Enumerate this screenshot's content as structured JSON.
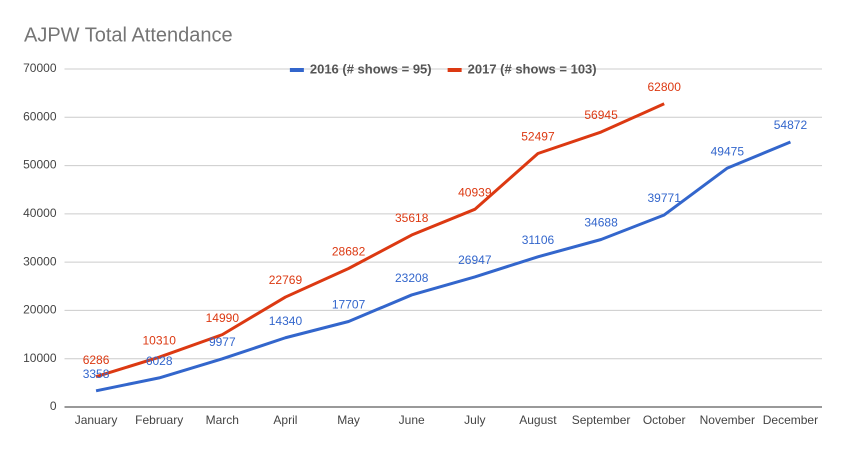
{
  "chart_data": {
    "type": "line",
    "title": "AJPW Total Attendance",
    "categories": [
      "January",
      "February",
      "March",
      "April",
      "May",
      "June",
      "July",
      "August",
      "September",
      "October",
      "November",
      "December"
    ],
    "series": [
      {
        "name": "2016 (# shows = 95)",
        "color": "#3366cc",
        "values": [
          3358,
          6028,
          9977,
          14340,
          17707,
          23208,
          26947,
          31106,
          34688,
          39771,
          49475,
          54872
        ]
      },
      {
        "name": "2017 (# shows = 103)",
        "color": "#dc3912",
        "values": [
          6286,
          10310,
          14990,
          22769,
          28682,
          35618,
          40939,
          52497,
          56945,
          62800,
          null,
          null
        ]
      }
    ],
    "ylim": [
      0,
      70000
    ],
    "yticks": [
      0,
      10000,
      20000,
      30000,
      40000,
      50000,
      60000,
      70000
    ],
    "grid": true,
    "legend": "top"
  }
}
